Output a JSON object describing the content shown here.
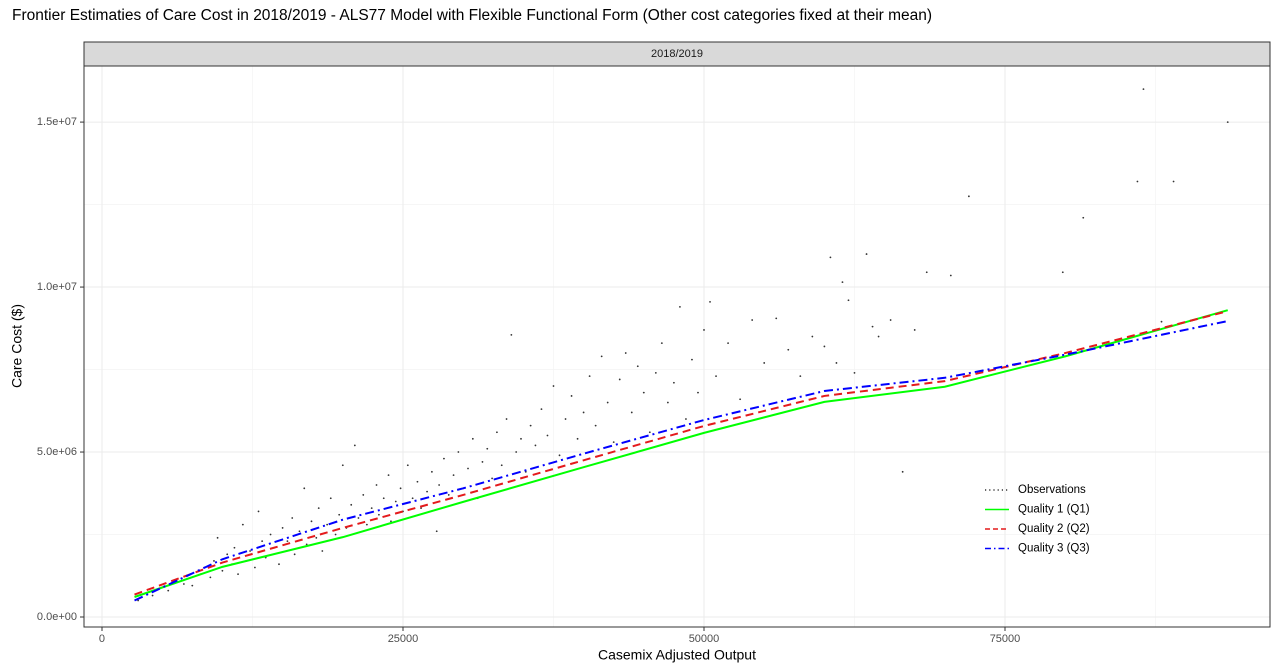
{
  "chart_data": {
    "type": "scatter",
    "title": "Frontier Estimaties of Care Cost in 2018/2019 - ALS77 Model with Flexible Functional Form (Other cost categories fixed at their mean)",
    "facet_label": "2018/2019",
    "x_label": "Casemix Adjusted Output",
    "y_label": "Care Cost ($)",
    "xlim": [
      -1495,
      97010
    ],
    "ylim": [
      -303000,
      16700000
    ],
    "xticks": [
      0,
      25000,
      50000,
      75000
    ],
    "yticks": [
      {
        "value": 0,
        "label": "0.0e+00"
      },
      {
        "value": 5000000,
        "label": "5.0e+06"
      },
      {
        "value": 10000000,
        "label": "1.0e+07"
      },
      {
        "value": 15000000,
        "label": "1.5e+07"
      }
    ],
    "minor_xticks": [
      12500,
      37500,
      62500,
      87500
    ],
    "minor_yticks": [
      2500000,
      7500000,
      12500000
    ],
    "grid": true,
    "legend_position": "bottom-right",
    "series": [
      {
        "name": "Observations",
        "type": "scatter",
        "color": "#333333",
        "x": [
          3000,
          3500,
          4200,
          5000,
          5500,
          6200,
          6800,
          7000,
          7500,
          8200,
          8500,
          9000,
          9300,
          9600,
          10000,
          10400,
          10800,
          11000,
          11300,
          11700,
          12000,
          12300,
          12700,
          13000,
          13300,
          13600,
          14000,
          14300,
          14700,
          15000,
          15400,
          15800,
          16000,
          16400,
          16800,
          17000,
          17400,
          17800,
          18000,
          18300,
          18700,
          19000,
          19400,
          19700,
          20000,
          20300,
          20700,
          21000,
          21300,
          21700,
          22000,
          22400,
          22800,
          23000,
          23400,
          23800,
          24000,
          24400,
          24800,
          25000,
          25400,
          25800,
          26200,
          26500,
          27000,
          27400,
          27800,
          28000,
          28400,
          28800,
          29200,
          29600,
          30000,
          30400,
          30800,
          31200,
          31600,
          32000,
          32400,
          32800,
          33200,
          33600,
          34000,
          34400,
          34800,
          35200,
          35600,
          36000,
          36500,
          37000,
          37500,
          38000,
          38500,
          39000,
          39500,
          40000,
          40500,
          41000,
          41500,
          42000,
          42500,
          43000,
          43500,
          44000,
          44500,
          45000,
          45500,
          46000,
          46500,
          47000,
          47500,
          48000,
          48500,
          49000,
          49500,
          50000,
          50500,
          51000,
          52000,
          53000,
          54000,
          55000,
          56000,
          57000,
          58000,
          59000,
          60000,
          60500,
          61000,
          61500,
          62000,
          62500,
          63500,
          64000,
          64500,
          65500,
          66500,
          67500,
          68500,
          70500,
          72000,
          79800,
          81500,
          86000,
          86500,
          88000,
          89000,
          93500
        ],
        "values": [
          500000,
          700000,
          650000,
          900000,
          800000,
          1100000,
          1000000,
          1250000,
          950000,
          1300000,
          1500000,
          1200000,
          1700000,
          2400000,
          1400000,
          1900000,
          1600000,
          2100000,
          1300000,
          2800000,
          1700000,
          2000000,
          1500000,
          3200000,
          2300000,
          1800000,
          2500000,
          2100000,
          1600000,
          2700000,
          2300000,
          3000000,
          1900000,
          2600000,
          3900000,
          2200000,
          2900000,
          2400000,
          3300000,
          2000000,
          2800000,
          3600000,
          2500000,
          3100000,
          4600000,
          2700000,
          3400000,
          5200000,
          3000000,
          3700000,
          2800000,
          3300000,
          4000000,
          3100000,
          3600000,
          4300000,
          2900000,
          3500000,
          3900000,
          3200000,
          4600000,
          3600000,
          4100000,
          3300000,
          3800000,
          4400000,
          2600000,
          4000000,
          4800000,
          3700000,
          4300000,
          5000000,
          3900000,
          4500000,
          5400000,
          3600000,
          4700000,
          5100000,
          4200000,
          5600000,
          4600000,
          6000000,
          8550000,
          5000000,
          5400000,
          4400000,
          5800000,
          5200000,
          6300000,
          5500000,
          7000000,
          4900000,
          6000000,
          6700000,
          5400000,
          6200000,
          7300000,
          5800000,
          7900000,
          6500000,
          5300000,
          7200000,
          8000000,
          6200000,
          7600000,
          6800000,
          5600000,
          7400000,
          8300000,
          6500000,
          7100000,
          9400000,
          6000000,
          7800000,
          6800000,
          8700000,
          9550000,
          7300000,
          8300000,
          6600000,
          9000000,
          7700000,
          9050000,
          8100000,
          7300000,
          8500000,
          8200000,
          10900000,
          7700000,
          10150000,
          9600000,
          7400000,
          11000000,
          8800000,
          8500000,
          9000000,
          4400000,
          8700000,
          10450000,
          10350000,
          12750000,
          10450000,
          12100000,
          13200000,
          16000000,
          8950000,
          13200000,
          15000000
        ]
      },
      {
        "name": "Quality 1 (Q1)",
        "type": "line",
        "color": "#00ff00",
        "dash": "solid",
        "x": [
          2700,
          10000,
          20000,
          30000,
          40000,
          50000,
          60000,
          70000,
          80000,
          93500
        ],
        "values": [
          606000,
          1520000,
          2420000,
          3490000,
          4540000,
          5580000,
          6520000,
          6980000,
          7900000,
          9300000
        ]
      },
      {
        "name": "Quality 2 (Q2)",
        "type": "line",
        "color": "#e41a1c",
        "dash": "dashed",
        "x": [
          2700,
          10000,
          20000,
          30000,
          40000,
          50000,
          60000,
          70000,
          80000,
          93500
        ],
        "values": [
          680000,
          1650000,
          2700000,
          3700000,
          4750000,
          5790000,
          6700000,
          7150000,
          8000000,
          9270000
        ]
      },
      {
        "name": "Quality 3 (Q3)",
        "type": "line",
        "color": "#0000ff",
        "dash": "dashdot",
        "x": [
          2700,
          10000,
          20000,
          30000,
          40000,
          50000,
          60000,
          70000,
          80000,
          93500
        ],
        "values": [
          500000,
          1750000,
          2950000,
          3900000,
          4950000,
          5970000,
          6850000,
          7250000,
          7950000,
          8970000
        ]
      }
    ]
  }
}
